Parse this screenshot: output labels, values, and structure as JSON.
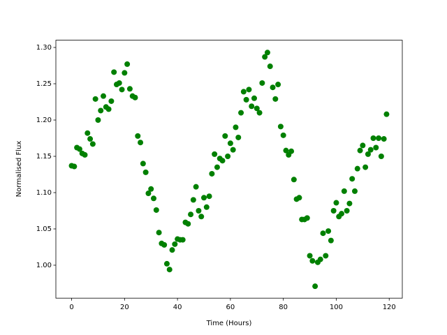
{
  "chart_data": {
    "type": "scatter",
    "x_label": "Time (Hours)",
    "y_label": "Normalised Flux",
    "color": "#008000",
    "x": [
      0,
      1,
      2,
      3,
      4,
      5,
      6,
      7,
      8,
      9,
      10,
      11,
      12,
      13,
      14,
      15,
      16,
      17,
      18,
      19,
      20,
      21,
      22,
      23,
      24,
      25,
      26,
      27,
      28,
      29,
      30,
      31,
      32,
      33,
      34,
      35,
      36,
      37,
      38,
      39,
      40,
      41,
      42,
      43,
      44,
      45,
      46,
      47,
      48,
      49,
      50,
      51,
      52,
      53,
      54,
      55,
      56,
      57,
      58,
      59,
      60,
      61,
      62,
      63,
      64,
      65,
      66,
      67,
      68,
      69,
      70,
      71,
      72,
      73,
      74,
      75,
      76,
      77,
      78,
      79,
      80,
      81,
      82,
      83,
      84,
      85,
      86,
      87,
      88,
      89,
      90,
      91,
      92,
      93,
      94,
      95,
      96,
      97,
      98,
      99,
      100,
      101,
      102,
      103,
      104,
      105,
      106,
      107,
      108,
      109,
      110,
      111,
      112,
      113,
      114,
      115,
      116,
      117,
      118,
      119
    ],
    "values": [
      1.137,
      1.136,
      1.162,
      1.16,
      1.154,
      1.152,
      1.182,
      1.174,
      1.167,
      1.229,
      1.2,
      1.213,
      1.233,
      1.218,
      1.215,
      1.226,
      1.266,
      1.249,
      1.251,
      1.242,
      1.265,
      1.277,
      1.243,
      1.233,
      1.231,
      1.178,
      1.169,
      1.14,
      1.128,
      1.099,
      1.105,
      1.092,
      1.076,
      1.045,
      1.03,
      1.028,
      1.002,
      0.994,
      1.021,
      1.029,
      1.036,
      1.035,
      1.035,
      1.059,
      1.057,
      1.07,
      1.09,
      1.108,
      1.075,
      1.067,
      1.093,
      1.08,
      1.095,
      1.126,
      1.153,
      1.135,
      1.147,
      1.144,
      1.178,
      1.15,
      1.168,
      1.159,
      1.19,
      1.176,
      1.21,
      1.239,
      1.228,
      1.242,
      1.219,
      1.23,
      1.216,
      1.21,
      1.251,
      1.287,
      1.293,
      1.274,
      1.245,
      1.229,
      1.249,
      1.191,
      1.179,
      1.158,
      1.152,
      1.157,
      1.118,
      1.091,
      1.093,
      1.063,
      1.063,
      1.065,
      1.013,
      1.006,
      0.971,
      1.004,
      1.008,
      1.044,
      1.013,
      1.047,
      1.034,
      1.075,
      1.086,
      1.067,
      1.071,
      1.102,
      1.075,
      1.085,
      1.119,
      1.102,
      1.133,
      1.158,
      1.165,
      1.135,
      1.153,
      1.159,
      1.175,
      1.162,
      1.175,
      1.15,
      1.174,
      1.208
    ],
    "xlim": [
      -5.95,
      124.95
    ],
    "xticks": [
      0,
      20,
      40,
      60,
      80,
      100,
      120
    ],
    "ylim": [
      0.9546,
      1.31
    ],
    "yticks": [
      {
        "value": 1.0,
        "label": "1.00"
      },
      1.05,
      {
        "value": 1.1,
        "label": "1.10"
      },
      1.15,
      {
        "value": 1.2,
        "label": "1.20"
      },
      1.25,
      {
        "value": 1.3,
        "label": "1.30"
      }
    ]
  }
}
